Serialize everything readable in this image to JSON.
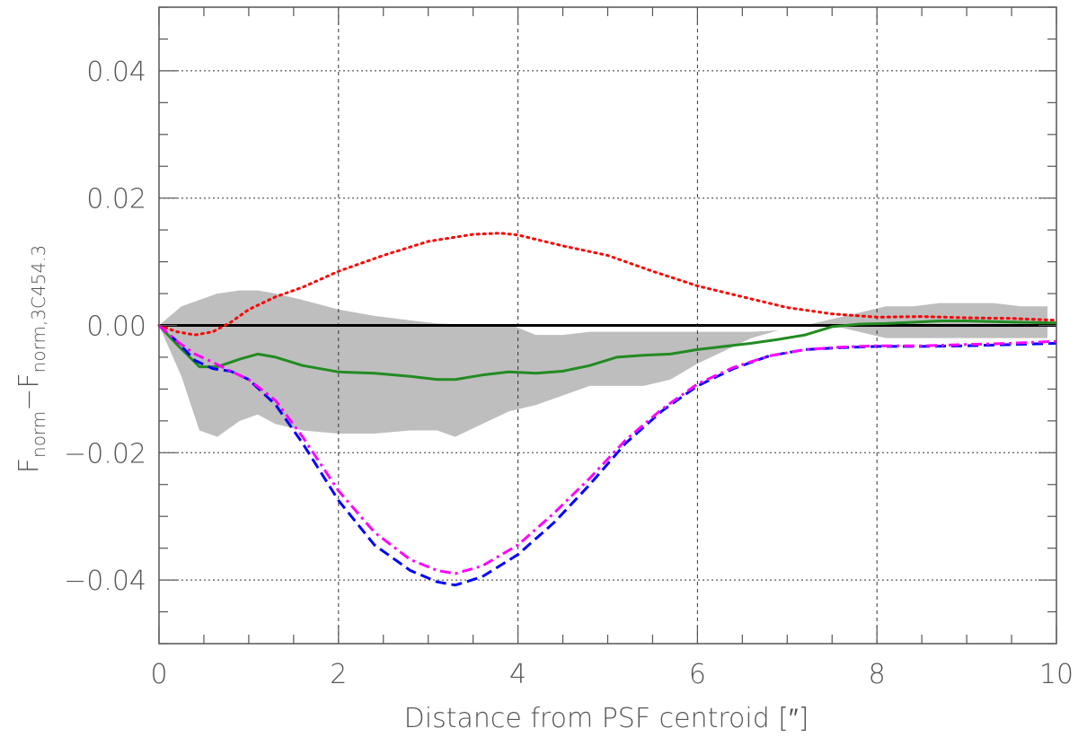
{
  "chart_data": {
    "type": "line",
    "xlabel": "Distance from PSF centroid [″]",
    "ylabel": {
      "main": "F",
      "sub1": "norm",
      "mid": "−F",
      "sub2": "norm,3C454.3"
    },
    "xlim": [
      0,
      10
    ],
    "ylim": [
      -0.05,
      0.05
    ],
    "x_ticks": [
      0,
      2,
      4,
      6,
      8,
      10
    ],
    "x_tick_labels": [
      "0",
      "2",
      "4",
      "6",
      "8",
      "10"
    ],
    "y_ticks": [
      -0.04,
      -0.02,
      0.0,
      0.02,
      0.04
    ],
    "y_tick_labels": [
      "−0.04",
      "−0.02",
      "0.00",
      "0.02",
      "0.04"
    ],
    "grid": true,
    "band": {
      "color": "#bebebe",
      "x": [
        0,
        0.25,
        0.45,
        0.65,
        0.9,
        1.1,
        1.3,
        1.6,
        2.0,
        2.4,
        2.8,
        3.1,
        3.3,
        3.6,
        3.9,
        4.2,
        4.5,
        4.8,
        5.1,
        5.4,
        5.7,
        6.0,
        6.3,
        6.6,
        6.9,
        7.2,
        7.5,
        7.8,
        8.1,
        8.4,
        8.7,
        9.0,
        9.3,
        9.6,
        9.9
      ],
      "upper": [
        0,
        0.003,
        0.004,
        0.005,
        0.0055,
        0.0055,
        0.005,
        0.004,
        0.0025,
        0.0015,
        0.0008,
        0.0003,
        0.0002,
        0.0002,
        0.0002,
        -0.0015,
        -0.0015,
        -0.001,
        -0.001,
        -0.001,
        -0.001,
        -0.001,
        -0.001,
        -0.001,
        -0.0008,
        0.0,
        0.001,
        0.002,
        0.003,
        0.003,
        0.0035,
        0.0035,
        0.0035,
        0.003,
        0.003
      ],
      "lower": [
        0,
        -0.008,
        -0.0165,
        -0.0175,
        -0.015,
        -0.014,
        -0.0155,
        -0.0165,
        -0.017,
        -0.017,
        -0.0165,
        -0.0165,
        -0.0175,
        -0.0155,
        -0.0135,
        -0.0125,
        -0.011,
        -0.0095,
        -0.0095,
        -0.0095,
        -0.0085,
        -0.006,
        -0.004,
        -0.002,
        -0.0008,
        0.0,
        0.0,
        -0.001,
        -0.002,
        -0.002,
        -0.002,
        -0.002,
        -0.002,
        -0.002,
        -0.002
      ]
    },
    "series": [
      {
        "color": "#000000",
        "style": "solid",
        "width": 3,
        "x": [
          0,
          10
        ],
        "y": [
          0.0,
          0.0
        ]
      },
      {
        "color": "#ff0000",
        "style": "dotted",
        "width": 3,
        "x": [
          0,
          0.2,
          0.4,
          0.6,
          0.8,
          1.0,
          1.3,
          1.6,
          2.0,
          2.5,
          3.0,
          3.5,
          3.8,
          4.0,
          4.5,
          5.0,
          5.5,
          6.0,
          6.5,
          7.0,
          7.5,
          8.0,
          8.5,
          9.0,
          9.5,
          10.0
        ],
        "y": [
          0.0,
          -0.001,
          -0.0015,
          -0.001,
          0.0005,
          0.0025,
          0.0045,
          0.006,
          0.0085,
          0.011,
          0.0132,
          0.0143,
          0.0145,
          0.0142,
          0.0125,
          0.011,
          0.0085,
          0.0062,
          0.0045,
          0.0028,
          0.0018,
          0.0013,
          0.0014,
          0.0012,
          0.0011,
          0.0008
        ]
      },
      {
        "color": "#228b22",
        "style": "solid",
        "width": 3,
        "x": [
          0,
          0.2,
          0.45,
          0.65,
          0.9,
          1.1,
          1.3,
          1.6,
          2.0,
          2.4,
          2.8,
          3.1,
          3.3,
          3.6,
          3.9,
          4.2,
          4.5,
          4.8,
          5.1,
          5.4,
          5.7,
          6.0,
          6.3,
          6.6,
          6.9,
          7.2,
          7.5,
          7.8,
          8.1,
          8.4,
          8.7,
          9.0,
          9.3,
          9.6,
          10.0
        ],
        "y": [
          0.0,
          -0.003,
          -0.0065,
          -0.0065,
          -0.0053,
          -0.0045,
          -0.005,
          -0.0063,
          -0.0073,
          -0.0075,
          -0.008,
          -0.0085,
          -0.0085,
          -0.0078,
          -0.0073,
          -0.0075,
          -0.0072,
          -0.0063,
          -0.005,
          -0.0047,
          -0.0045,
          -0.0038,
          -0.0033,
          -0.0028,
          -0.0022,
          -0.0015,
          -0.0002,
          0.0002,
          0.0003,
          0.0005,
          0.0007,
          0.0007,
          0.0006,
          0.0005,
          0.0004
        ]
      },
      {
        "color": "#0000ff",
        "style": "dashed",
        "width": 3,
        "x": [
          0,
          0.2,
          0.4,
          0.6,
          0.8,
          1.0,
          1.3,
          1.6,
          2.0,
          2.4,
          2.8,
          3.1,
          3.3,
          3.6,
          4.0,
          4.4,
          4.8,
          5.2,
          5.6,
          6.0,
          6.4,
          6.8,
          7.2,
          7.6,
          8.0,
          8.5,
          9.0,
          9.5,
          10.0
        ],
        "y": [
          0.0,
          -0.0025,
          -0.0055,
          -0.0068,
          -0.0072,
          -0.0085,
          -0.0125,
          -0.0185,
          -0.0275,
          -0.0345,
          -0.0385,
          -0.0403,
          -0.0408,
          -0.0395,
          -0.036,
          -0.031,
          -0.025,
          -0.0185,
          -0.0135,
          -0.0095,
          -0.0068,
          -0.0048,
          -0.0038,
          -0.0035,
          -0.0033,
          -0.0033,
          -0.0032,
          -0.003,
          -0.0028
        ]
      },
      {
        "color": "#ff00ff",
        "style": "dashdot",
        "width": 3,
        "x": [
          0,
          0.2,
          0.4,
          0.6,
          0.8,
          1.0,
          1.3,
          1.6,
          2.0,
          2.4,
          2.8,
          3.1,
          3.3,
          3.6,
          4.0,
          4.4,
          4.8,
          5.2,
          5.6,
          6.0,
          6.4,
          6.8,
          7.2,
          7.6,
          8.0,
          8.5,
          9.0,
          9.5,
          10.0
        ],
        "y": [
          0.0,
          -0.0025,
          -0.0045,
          -0.0058,
          -0.0072,
          -0.0085,
          -0.0118,
          -0.0175,
          -0.026,
          -0.0325,
          -0.0368,
          -0.0385,
          -0.039,
          -0.0378,
          -0.0345,
          -0.0295,
          -0.024,
          -0.018,
          -0.0132,
          -0.0092,
          -0.0066,
          -0.0048,
          -0.0038,
          -0.0034,
          -0.0032,
          -0.0032,
          -0.003,
          -0.0028,
          -0.0025
        ]
      }
    ]
  }
}
